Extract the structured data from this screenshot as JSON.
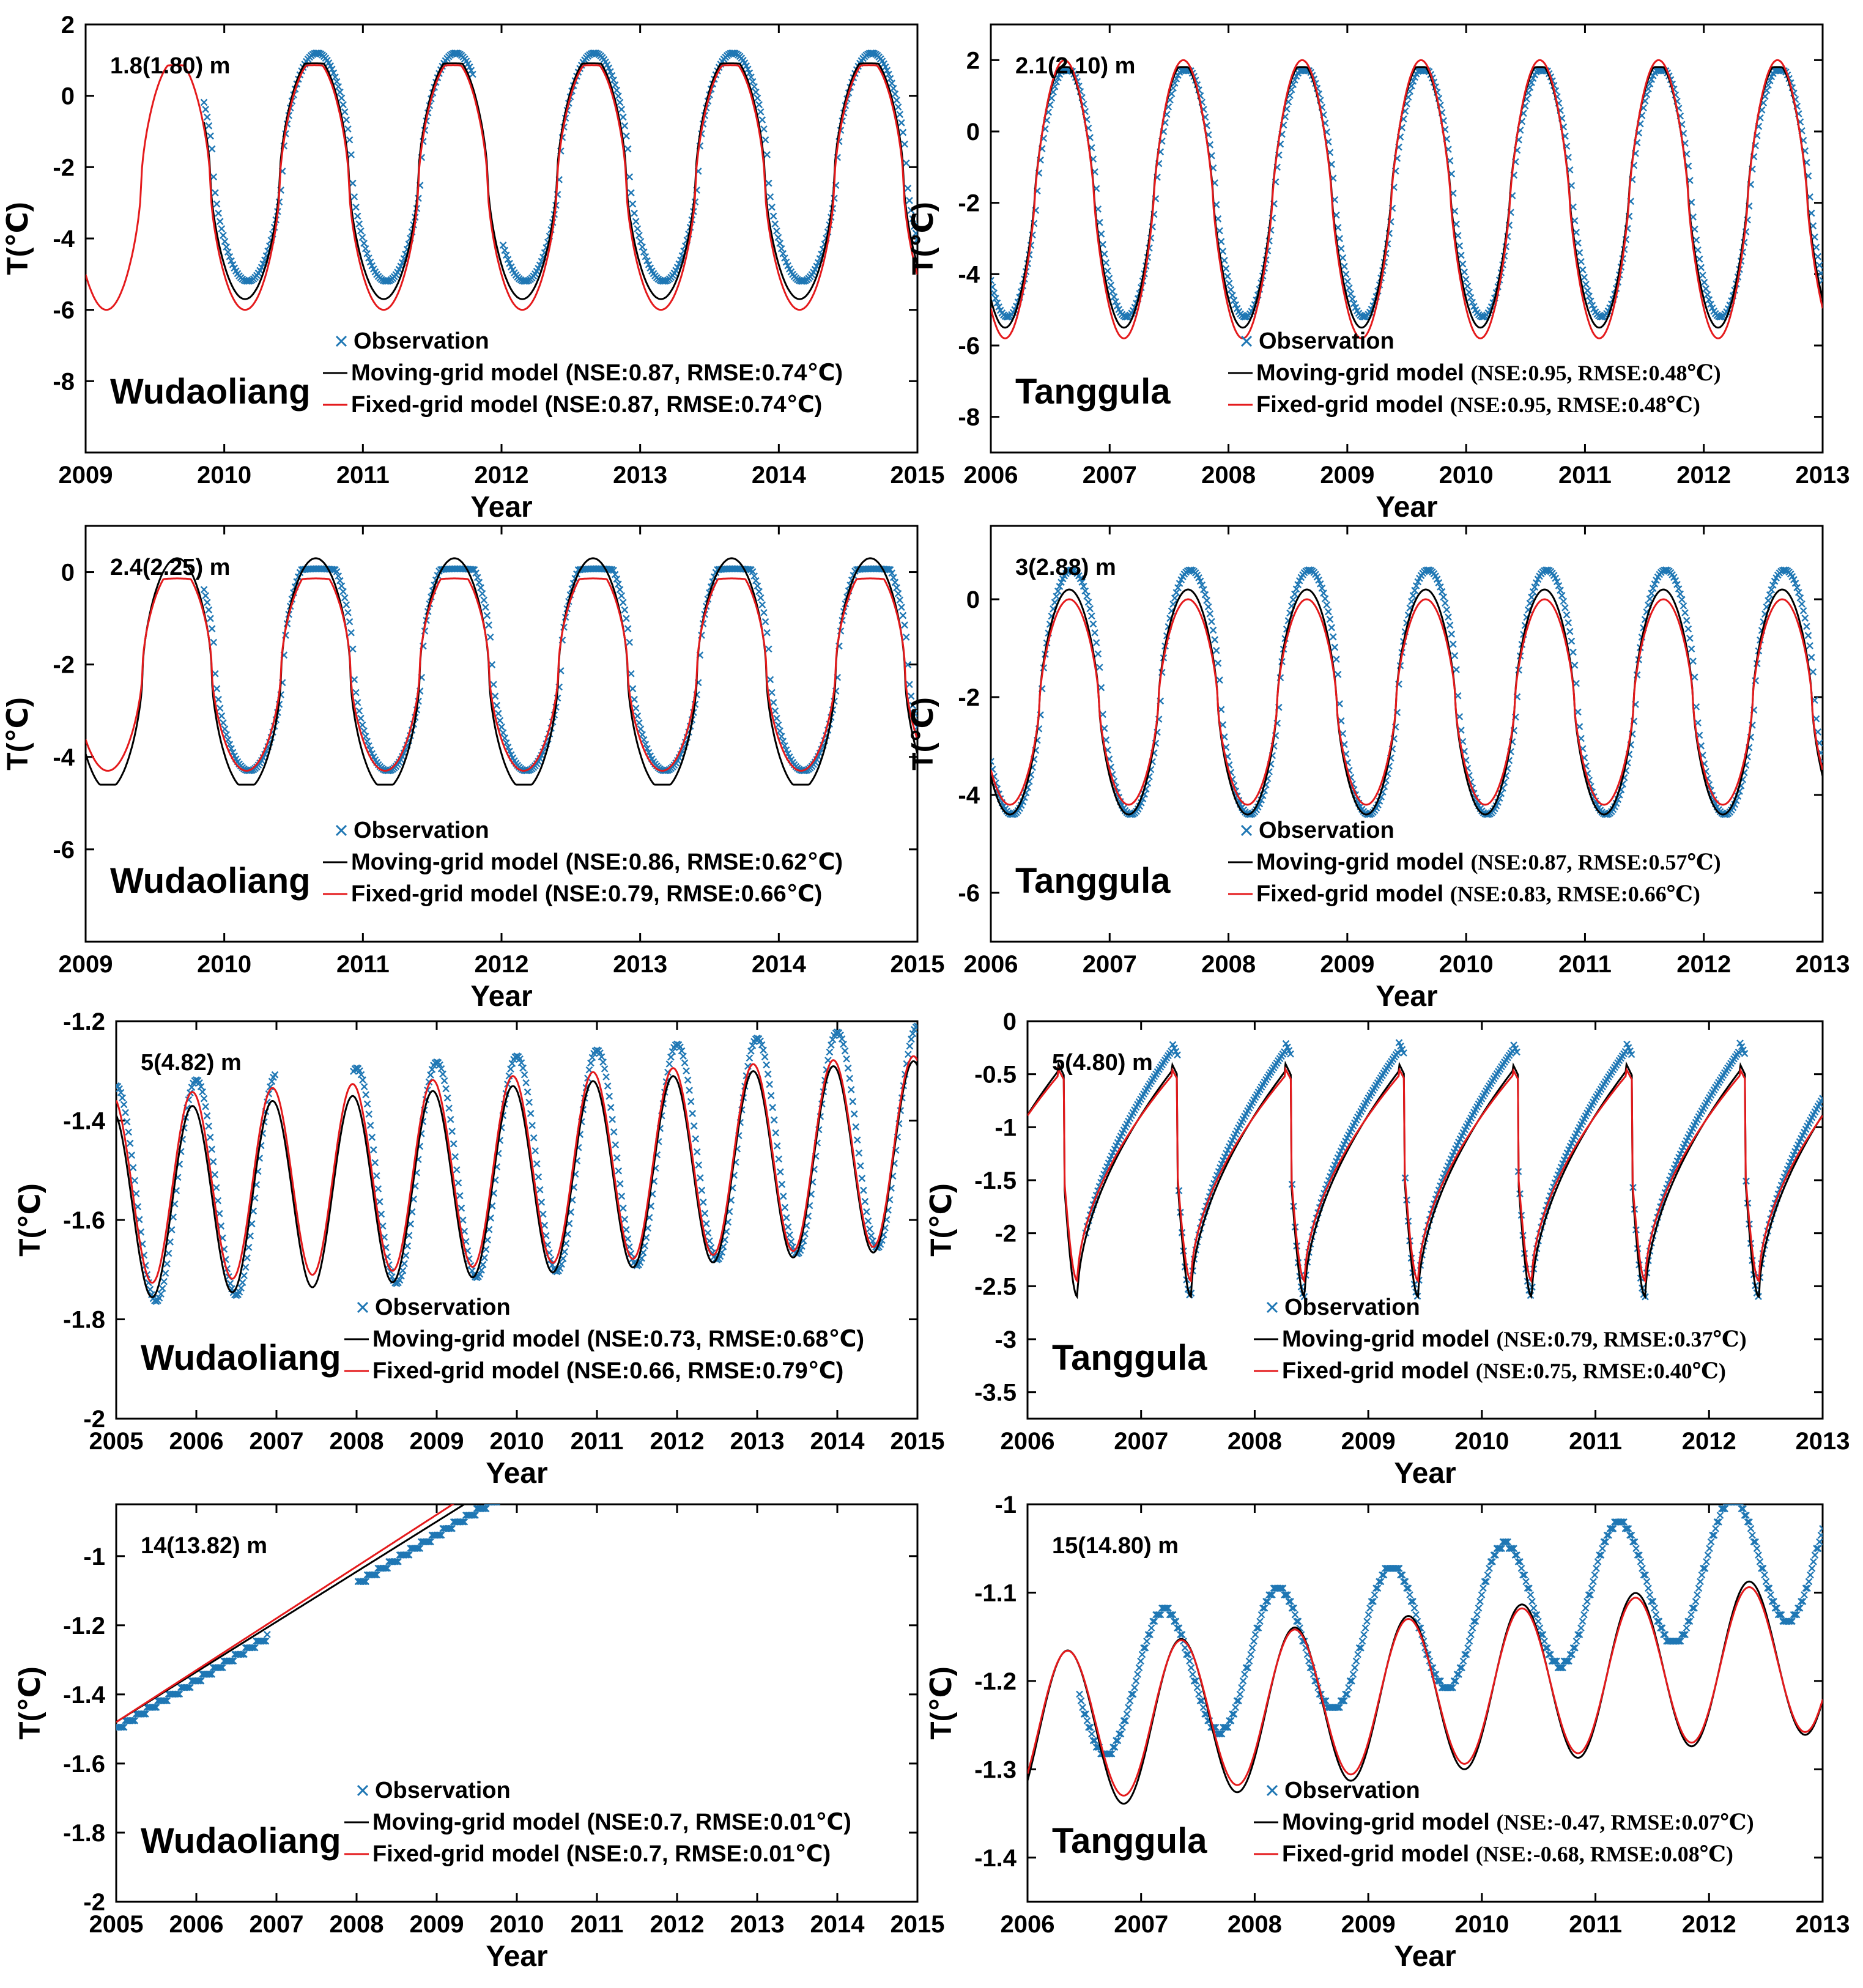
{
  "colors": {
    "observation": "#1f77b4",
    "moving": "#000000",
    "fixed": "#e41a1c"
  },
  "legend_labels": {
    "observation": "Observation",
    "moving": "Moving-grid model",
    "fixed": "Fixed-grid model"
  },
  "axis": {
    "xlabel": "Year",
    "ylabel": "T(℃)"
  },
  "chart_data": [
    {
      "type": "line",
      "site": "Wudaoliang",
      "depth_label": "1.8(1.80) m",
      "xlim": [
        2009,
        2015
      ],
      "ylim": [
        -10,
        2
      ],
      "xticks": [
        "2009",
        "2010",
        "2011",
        "2012",
        "2013",
        "2014",
        "2015"
      ],
      "yticks": [
        "2",
        "0",
        "-2",
        "-4",
        "-6",
        "-8"
      ],
      "moving_stats": "(NSE:0.87, RMSE:0.74℃)",
      "fixed_stats": "(NSE:0.87, RMSE:0.74℃)",
      "obs_gaps": [
        [
          2009.0,
          2009.85
        ],
        [
          2011.8,
          2012.0
        ]
      ],
      "series": {
        "fixed": {
          "mean": -2.5,
          "amp": 3.5,
          "cold_phase": 0.15,
          "shape": 1.6,
          "cap": 0.85,
          "floor": -6.1
        },
        "moving": {
          "mean": -2.3,
          "amp": 3.4,
          "cold_phase": 0.15,
          "shape": 1.6,
          "cap": 0.9,
          "floor": -6.0,
          "start": 2009.85
        },
        "obs": {
          "mean": -2.0,
          "amp": 3.2,
          "cold_phase": 0.17,
          "shape": 1.6,
          "cap": 1.2,
          "floor": -5.4
        }
      }
    },
    {
      "type": "line",
      "site": "Tanggula",
      "depth_label": "2.1(2.10) m",
      "xlim": [
        2006,
        2013
      ],
      "ylim": [
        -9,
        3
      ],
      "xticks": [
        "2006",
        "2007",
        "2008",
        "2009",
        "2010",
        "2011",
        "2012",
        "2013"
      ],
      "yticks": [
        "2",
        "0",
        "-2",
        "-4",
        "-6",
        "-8"
      ],
      "moving_stats": "(NSE:0.95, RMSE:0.48℃)",
      "fixed_stats": "(NSE:0.95, RMSE:0.48℃)",
      "obs_gaps": [],
      "series": {
        "fixed": {
          "mean": -1.9,
          "amp": 3.9,
          "cold_phase": 0.12,
          "shape": 1.3,
          "cap": 2.0,
          "floor": -5.9
        },
        "moving": {
          "mean": -1.8,
          "amp": 3.7,
          "cold_phase": 0.12,
          "shape": 1.3,
          "cap": 1.8,
          "floor": -5.6
        },
        "obs": {
          "mean": -1.7,
          "amp": 3.5,
          "cold_phase": 0.14,
          "shape": 1.3,
          "cap": 1.7,
          "floor": -5.4
        }
      }
    },
    {
      "type": "line",
      "site": "Wudaoliang",
      "depth_label": "2.4(2.25) m",
      "xlim": [
        2009,
        2015
      ],
      "ylim": [
        -8,
        1
      ],
      "xticks": [
        "2009",
        "2010",
        "2011",
        "2012",
        "2013",
        "2014",
        "2015"
      ],
      "yticks": [
        "0",
        "-2",
        "-4",
        "-6"
      ],
      "moving_stats": "(NSE:0.86, RMSE:0.62℃)",
      "fixed_stats": "(NSE:0.79, RMSE:0.66℃)",
      "obs_gaps": [
        [
          2009.0,
          2009.85
        ]
      ],
      "series": {
        "fixed": {
          "mean": -2.1,
          "amp": 2.2,
          "cold_phase": 0.16,
          "shape": 1.7,
          "cap": -0.15,
          "floor": -4.3
        },
        "moving": {
          "mean": -2.2,
          "amp": 2.5,
          "cold_phase": 0.16,
          "shape": 1.7,
          "cap": 0.0,
          "floor": -4.6
        },
        "obs": {
          "mean": -1.9,
          "amp": 2.4,
          "cold_phase": 0.18,
          "shape": 1.7,
          "cap": 0.05,
          "floor": -4.6
        }
      }
    },
    {
      "type": "line",
      "site": "Tanggula",
      "depth_label": "3(2.88) m",
      "xlim": [
        2006,
        2013
      ],
      "ylim": [
        -7,
        1.5
      ],
      "xticks": [
        "2006",
        "2007",
        "2008",
        "2009",
        "2010",
        "2011",
        "2012",
        "2013"
      ],
      "yticks": [
        "0",
        "-2",
        "-4",
        "-6"
      ],
      "moving_stats": "(NSE:0.87, RMSE:0.57℃)",
      "fixed_stats": "(NSE:0.83, RMSE:0.66℃)",
      "obs_gaps": [],
      "series": {
        "fixed": {
          "mean": -2.1,
          "amp": 2.1,
          "cold_phase": 0.16,
          "shape": 1.5,
          "cap": 0.15,
          "floor": -4.3
        },
        "moving": {
          "mean": -2.1,
          "amp": 2.3,
          "cold_phase": 0.16,
          "shape": 1.5,
          "cap": 0.25,
          "floor": -4.4
        },
        "obs": {
          "mean": -1.9,
          "amp": 2.5,
          "cold_phase": 0.18,
          "shape": 1.5,
          "cap": 0.6,
          "floor": -4.5
        }
      }
    },
    {
      "type": "line",
      "site": "Wudaoliang",
      "depth_label": "5(4.82) m",
      "xlim": [
        2005,
        2015
      ],
      "ylim": [
        -2,
        -1.2
      ],
      "xticks": [
        "2005",
        "2006",
        "2007",
        "2008",
        "2009",
        "2010",
        "2011",
        "2012",
        "2013",
        "2014",
        "2015"
      ],
      "yticks": [
        "-1.2",
        "-1.4",
        "-1.6",
        "-1.8",
        "-2"
      ],
      "moving_stats": "(NSE:0.73, RMSE:0.68℃)",
      "fixed_stats": "(NSE:0.66, RMSE:0.79℃)",
      "obs_gaps": [
        [
          2007.0,
          2007.95
        ]
      ],
      "series": {
        "fixed": {
          "mean": -1.54,
          "amp": 0.19,
          "cold_phase": 0.45,
          "shape": 1.0,
          "trend": 0.008,
          "cap": 0,
          "floor": -9
        },
        "moving": {
          "mean": -1.57,
          "amp": 0.19,
          "cold_phase": 0.45,
          "shape": 1.0,
          "trend": 0.01,
          "cap": 0,
          "floor": -9
        },
        "obs": {
          "mean": -1.55,
          "amp": 0.22,
          "cold_phase": 0.5,
          "shape": 1.0,
          "trend": 0.012,
          "cap": 0,
          "floor": -9
        }
      }
    },
    {
      "type": "line",
      "site": "Tanggula",
      "depth_label": "5(4.80) m",
      "xlim": [
        2006,
        2013
      ],
      "ylim": [
        -3.75,
        0
      ],
      "xticks": [
        "2006",
        "2007",
        "2008",
        "2009",
        "2010",
        "2011",
        "2012",
        "2013"
      ],
      "yticks": [
        "0",
        "-0.5",
        "-1",
        "-1.5",
        "-2",
        "-2.5",
        "-3",
        "-3.5"
      ],
      "moving_stats": "(NSE:0.79, RMSE:0.37℃)",
      "fixed_stats": "(NSE:0.75, RMSE:0.40℃)",
      "obs_gaps": [
        [
          2006.0,
          2006.5
        ]
      ],
      "series": {
        "fixed": {
          "mean": -1.45,
          "amp": 1.0,
          "cold_phase": 0.32,
          "shape": 1.0,
          "cap": 0,
          "floor": -9,
          "saw": true
        },
        "moving": {
          "mean": -1.5,
          "amp": 1.1,
          "cold_phase": 0.32,
          "shape": 1.0,
          "cap": 0,
          "floor": -9,
          "saw": true
        },
        "obs": {
          "mean": -1.4,
          "amp": 1.2,
          "cold_phase": 0.32,
          "shape": 1.0,
          "cap": 0,
          "floor": -9,
          "saw": true
        }
      }
    },
    {
      "type": "line",
      "site": "Wudaoliang",
      "depth_label": "14(13.82) m",
      "xlim": [
        2005,
        2015
      ],
      "ylim": [
        -2,
        -0.85
      ],
      "xticks": [
        "2005",
        "2006",
        "2007",
        "2008",
        "2009",
        "2010",
        "2011",
        "2012",
        "2013",
        "2014",
        "2015"
      ],
      "yticks": [
        "-1",
        "-1.2",
        "-1.4",
        "-1.6",
        "-1.8",
        "-2"
      ],
      "moving_stats": "(NSE:0.7, RMSE:0.01℃)",
      "fixed_stats": "(NSE:0.7, RMSE:0.01℃)",
      "obs_gaps": [
        [
          2006.9,
          2008.0
        ],
        [
          2012.0,
          2012.95
        ]
      ],
      "series": {
        "fixed": {
          "linear": [
            -1.48,
            -1.33
          ]
        },
        "moving": {
          "linear": [
            -1.48,
            -1.335
          ]
        },
        "obs": {
          "linear": [
            -1.5,
            -1.36
          ],
          "steps": true
        }
      }
    },
    {
      "type": "line",
      "site": "Tanggula",
      "depth_label": "15(14.80) m",
      "xlim": [
        2006,
        2013
      ],
      "ylim": [
        -1.45,
        -1.0
      ],
      "xticks": [
        "2006",
        "2007",
        "2008",
        "2009",
        "2010",
        "2011",
        "2012",
        "2013"
      ],
      "yticks": [
        "-1",
        "-1.1",
        "-1.2",
        "-1.3",
        "-1.4"
      ],
      "moving_stats": "(NSE:-0.47, RMSE:0.07℃)",
      "fixed_stats": "(NSE:-0.68, RMSE:0.08℃)",
      "obs_gaps": [
        [
          2006.0,
          2006.45
        ]
      ],
      "series": {
        "fixed": {
          "mean": -1.255,
          "amp": 0.085,
          "cold_phase": 0.85,
          "shape": 1.0,
          "trend": 0.012,
          "cap": 0,
          "floor": -9
        },
        "moving": {
          "mean": -1.26,
          "amp": 0.09,
          "cold_phase": 0.85,
          "shape": 1.0,
          "trend": 0.013,
          "cap": 0,
          "floor": -9
        },
        "obs": {
          "mean": -1.225,
          "amp": 0.075,
          "cold_phase": 0.7,
          "shape": 1.0,
          "trend": 0.025,
          "cap": 0,
          "floor": -9,
          "steps": true
        }
      }
    }
  ]
}
